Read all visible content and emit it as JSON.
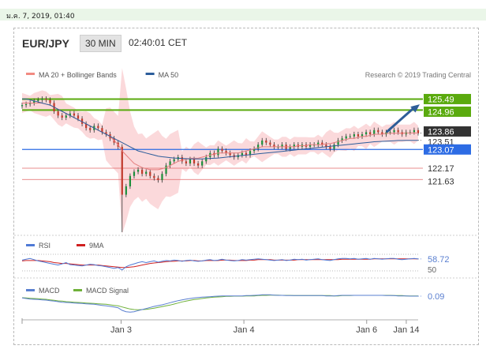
{
  "page": {
    "date_label": "ม.ค. 7, 2019, 01:40"
  },
  "header": {
    "pair": "EUR/JPY",
    "timeframe": "30 MIN",
    "time": "02:40:01 CET"
  },
  "colors": {
    "up": "#1b8f3a",
    "down": "#c0392b",
    "ma20": "#e57f7f",
    "ma50": "#2c5d9b",
    "band_fill": "#f7b9bd",
    "resistance": "#5aaa0e",
    "support_blue": "#2d6ce4",
    "support_red": "#e06666",
    "arrow": "#2d5d98",
    "rsi": "#4f7ad6",
    "rsi_ma": "#d02020",
    "macd": "#5a7fd0",
    "macd_signal": "#6fb13a"
  },
  "chart_data": [
    {
      "type": "candlestick",
      "title": "EUR/JPY",
      "legend": [
        {
          "name": "MA 20 + Bollinger Bands",
          "color": "#f28b82"
        },
        {
          "name": "MA 50",
          "color": "#2c5d9b"
        }
      ],
      "credit": "Research © 2019 Trading Central",
      "ylim": [
        119.1,
        126.0
      ],
      "xlim": [
        0,
        100
      ],
      "x_ticks": [
        {
          "x": 25,
          "label": "Jan 3"
        },
        {
          "x": 56,
          "label": "Jan 4"
        },
        {
          "x": 87,
          "label": "Jan 6"
        },
        {
          "x": 97,
          "label": "Jan 14"
        }
      ],
      "current_price": 123.86,
      "levels": [
        {
          "value": 125.49,
          "kind": "resistance",
          "label": "125.49"
        },
        {
          "value": 124.96,
          "kind": "resistance",
          "label": "124.96"
        },
        {
          "value": 123.86,
          "kind": "current",
          "label": "123.86"
        },
        {
          "value": 123.51,
          "kind": "ma",
          "label": "123.51"
        },
        {
          "value": 123.07,
          "kind": "pivot",
          "label": "123.07"
        },
        {
          "value": 122.17,
          "kind": "support",
          "label": "122.17"
        },
        {
          "value": 121.63,
          "kind": "support",
          "label": "121.63"
        }
      ],
      "forecast_arrow": {
        "x0": 92,
        "y0": 123.9,
        "x1": 100,
        "y1": 125.2
      },
      "candles_close": [
        125.2,
        125.25,
        125.3,
        125.4,
        125.45,
        125.5,
        125.45,
        125.3,
        124.9,
        124.7,
        124.6,
        124.7,
        124.8,
        124.7,
        124.55,
        124.3,
        124.1,
        124.0,
        124.2,
        124.1,
        123.9,
        123.8,
        123.6,
        123.4,
        123.2,
        120.9,
        121.3,
        121.8,
        122.0,
        122.1,
        121.9,
        122.0,
        121.8,
        121.7,
        121.6,
        121.9,
        122.3,
        122.5,
        122.6,
        122.7,
        122.5,
        122.4,
        122.6,
        122.4,
        122.3,
        122.5,
        122.7,
        122.9,
        122.8,
        123.1,
        123.0,
        122.9,
        122.8,
        122.7,
        122.8,
        122.9,
        122.8,
        123.0,
        123.1,
        123.3,
        123.5,
        123.4,
        123.3,
        123.2,
        123.2,
        123.3,
        123.1,
        123.2,
        123.3,
        123.2,
        123.3,
        123.2,
        123.3,
        123.3,
        123.4,
        123.3,
        123.2,
        123.1,
        123.3,
        123.5,
        123.6,
        123.7,
        123.7,
        123.8,
        123.7,
        123.8,
        123.9,
        123.8,
        124.0,
        123.9,
        123.8,
        123.9,
        123.9,
        124.0,
        123.9,
        123.8,
        123.9,
        123.9,
        124.0,
        123.86
      ],
      "ma20": [
        125.3,
        125.3,
        125.3,
        125.3,
        125.3,
        125.3,
        125.25,
        125.2,
        125.1,
        125.0,
        124.9,
        124.8,
        124.7,
        124.6,
        124.5,
        124.4,
        124.3,
        124.2,
        124.1,
        124.0,
        123.9,
        123.8,
        123.7,
        123.5,
        123.3,
        123.0,
        122.8,
        122.6,
        122.4,
        122.3,
        122.2,
        122.15,
        122.1,
        122.1,
        122.1,
        122.15,
        122.2,
        122.3,
        122.4,
        122.5,
        122.55,
        122.6,
        122.65,
        122.65,
        122.65,
        122.7,
        122.75,
        122.8,
        122.85,
        122.9,
        122.9,
        122.9,
        122.9,
        122.9,
        122.9,
        122.95,
        123.0,
        123.05,
        123.1,
        123.15,
        123.2,
        123.2,
        123.2,
        123.2,
        123.2,
        123.2,
        123.2,
        123.2,
        123.2,
        123.25,
        123.25,
        123.25,
        123.3,
        123.3,
        123.3,
        123.3,
        123.35,
        123.35,
        123.4,
        123.45,
        123.5,
        123.55,
        123.6,
        123.6,
        123.65,
        123.7,
        123.7,
        123.75,
        123.8,
        123.8,
        123.8,
        123.85,
        123.85,
        123.85,
        123.85,
        123.85,
        123.86,
        123.86,
        123.86,
        123.86
      ],
      "ma50": [
        125.5,
        125.5,
        125.45,
        125.4,
        125.35,
        125.3,
        125.25,
        125.2,
        125.1,
        125.0,
        124.9,
        124.8,
        124.7,
        124.6,
        124.5,
        124.4,
        124.3,
        124.2,
        124.1,
        124.0,
        123.9,
        123.8,
        123.7,
        123.6,
        123.5,
        123.4,
        123.3,
        123.2,
        123.1,
        123.0,
        122.95,
        122.9,
        122.85,
        122.8,
        122.75,
        122.72,
        122.7,
        122.68,
        122.66,
        122.65,
        122.64,
        122.63,
        122.62,
        122.62,
        122.62,
        122.62,
        122.63,
        122.64,
        122.65,
        122.66,
        122.68,
        122.7,
        122.72,
        122.74,
        122.76,
        122.78,
        122.8,
        122.82,
        122.84,
        122.86,
        122.88,
        122.9,
        122.92,
        122.94,
        122.96,
        122.98,
        123.0,
        123.02,
        123.04,
        123.06,
        123.08,
        123.1,
        123.12,
        123.14,
        123.16,
        123.18,
        123.2,
        123.22,
        123.24,
        123.26,
        123.28,
        123.3,
        123.32,
        123.34,
        123.36,
        123.38,
        123.4,
        123.42,
        123.44,
        123.45,
        123.46,
        123.47,
        123.48,
        123.49,
        123.5,
        123.5,
        123.51,
        123.51,
        123.51,
        123.51
      ]
    },
    {
      "type": "line",
      "title": "RSI",
      "legend": [
        {
          "name": "RSI",
          "color": "#4f7ad6"
        },
        {
          "name": "9MA",
          "color": "#d02020"
        }
      ],
      "ylim": [
        30,
        70
      ],
      "axis_labels": [
        "50"
      ],
      "current_value": 58.72,
      "value_label": "58.72",
      "rsi": [
        56,
        58,
        60,
        57,
        54,
        52,
        50,
        48,
        46,
        44,
        47,
        50,
        45,
        44,
        43,
        42,
        44,
        46,
        45,
        43,
        42,
        40,
        38,
        36,
        38,
        32,
        40,
        44,
        47,
        50,
        52,
        50,
        52,
        54,
        51,
        53,
        55,
        54,
        56,
        55,
        53,
        55,
        56,
        54,
        53,
        54,
        56,
        57,
        55,
        56,
        58,
        56,
        55,
        54,
        55,
        57,
        56,
        57,
        58,
        59,
        58,
        57,
        56,
        55,
        56,
        57,
        55,
        56,
        58,
        57,
        58,
        56,
        57,
        58,
        59,
        57,
        56,
        55,
        57,
        59,
        60,
        60,
        59,
        60,
        58,
        59,
        60,
        58,
        60,
        59,
        58,
        59,
        60,
        60,
        58,
        57,
        58,
        59,
        60,
        58.72
      ],
      "ma9": [
        54,
        55,
        55,
        55,
        55,
        54,
        53,
        52,
        50,
        49,
        48,
        48,
        47,
        46,
        45,
        44,
        44,
        44,
        44,
        44,
        43,
        42,
        41,
        40,
        39,
        38,
        38,
        39,
        40,
        42,
        44,
        46,
        48,
        49,
        50,
        51,
        52,
        53,
        53,
        54,
        54,
        54,
        55,
        55,
        54,
        54,
        55,
        55,
        55,
        55,
        56,
        56,
        56,
        55,
        55,
        55,
        55,
        56,
        56,
        57,
        57,
        57,
        57,
        56,
        56,
        56,
        56,
        56,
        56,
        57,
        57,
        57,
        57,
        57,
        57,
        57,
        57,
        57,
        57,
        57,
        58,
        58,
        58,
        58,
        58,
        58,
        58,
        58,
        59,
        59,
        59,
        59,
        59,
        59,
        59,
        59,
        59,
        59,
        58.9,
        58.8
      ]
    },
    {
      "type": "line",
      "title": "MACD",
      "legend": [
        {
          "name": "MACD",
          "color": "#5a7fd0"
        },
        {
          "name": "MACD Signal",
          "color": "#6fb13a"
        }
      ],
      "ylim": [
        -0.6,
        0.3
      ],
      "current_value": 0.09,
      "value_label": "0.09",
      "macd": [
        0.02,
        0.0,
        -0.02,
        -0.03,
        -0.04,
        -0.05,
        -0.06,
        -0.08,
        -0.1,
        -0.12,
        -0.14,
        -0.15,
        -0.16,
        -0.17,
        -0.18,
        -0.19,
        -0.2,
        -0.21,
        -0.22,
        -0.24,
        -0.26,
        -0.28,
        -0.3,
        -0.32,
        -0.35,
        -0.45,
        -0.5,
        -0.52,
        -0.5,
        -0.46,
        -0.42,
        -0.38,
        -0.34,
        -0.3,
        -0.27,
        -0.24,
        -0.2,
        -0.16,
        -0.12,
        -0.08,
        -0.05,
        -0.02,
        0.0,
        0.02,
        0.04,
        0.05,
        0.06,
        0.07,
        0.08,
        0.09,
        0.1,
        0.1,
        0.1,
        0.1,
        0.1,
        0.1,
        0.11,
        0.11,
        0.12,
        0.13,
        0.14,
        0.14,
        0.14,
        0.13,
        0.12,
        0.12,
        0.11,
        0.11,
        0.11,
        0.11,
        0.11,
        0.11,
        0.11,
        0.11,
        0.11,
        0.11,
        0.1,
        0.1,
        0.1,
        0.11,
        0.12,
        0.12,
        0.12,
        0.12,
        0.12,
        0.12,
        0.12,
        0.12,
        0.12,
        0.12,
        0.12,
        0.11,
        0.11,
        0.11,
        0.1,
        0.1,
        0.1,
        0.09,
        0.09,
        0.09
      ],
      "signal": [
        0.03,
        0.02,
        0.01,
        0.0,
        -0.01,
        -0.02,
        -0.03,
        -0.05,
        -0.07,
        -0.09,
        -0.1,
        -0.12,
        -0.13,
        -0.14,
        -0.15,
        -0.16,
        -0.17,
        -0.18,
        -0.19,
        -0.2,
        -0.21,
        -0.22,
        -0.24,
        -0.26,
        -0.28,
        -0.32,
        -0.36,
        -0.4,
        -0.42,
        -0.43,
        -0.42,
        -0.41,
        -0.39,
        -0.37,
        -0.34,
        -0.31,
        -0.28,
        -0.25,
        -0.21,
        -0.17,
        -0.13,
        -0.1,
        -0.07,
        -0.04,
        -0.02,
        0.0,
        0.02,
        0.04,
        0.05,
        0.06,
        0.07,
        0.08,
        0.08,
        0.09,
        0.09,
        0.09,
        0.1,
        0.1,
        0.1,
        0.11,
        0.12,
        0.12,
        0.13,
        0.13,
        0.13,
        0.12,
        0.12,
        0.12,
        0.11,
        0.11,
        0.11,
        0.11,
        0.11,
        0.11,
        0.11,
        0.11,
        0.11,
        0.11,
        0.1,
        0.1,
        0.11,
        0.11,
        0.11,
        0.12,
        0.12,
        0.12,
        0.12,
        0.12,
        0.12,
        0.12,
        0.12,
        0.12,
        0.12,
        0.11,
        0.11,
        0.11,
        0.1,
        0.1,
        0.1,
        0.1
      ]
    }
  ]
}
